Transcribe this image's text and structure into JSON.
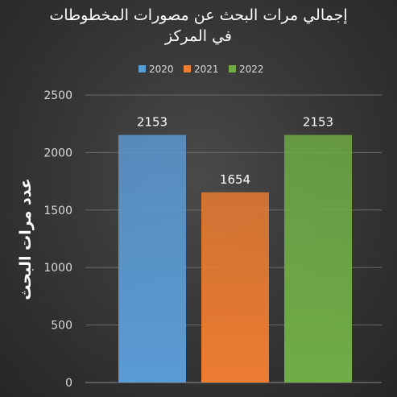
{
  "colors": {
    "background": "#383838",
    "text": "#ffffff",
    "tick_text": "#d9d9d9",
    "grid": "#6a6a6a"
  },
  "chart_data": {
    "type": "bar",
    "title": "إجمالي مرات البحث عن مصورات المخطوطات في المركز",
    "title_lines": [
      "إجمالي  مرات البحث عن مصورات المخطوطات",
      "في المركز"
    ],
    "xlabel": "",
    "ylabel": "عدد مرات البحث",
    "ylim": [
      0,
      2500
    ],
    "yticks": [
      0,
      500,
      1000,
      1500,
      2000,
      2500
    ],
    "grid": true,
    "legend_position": "top",
    "categories": [
      ""
    ],
    "series": [
      {
        "name": "2020",
        "values": [
          2153
        ],
        "color": "#5b9bd5",
        "label": "2153"
      },
      {
        "name": "2021",
        "values": [
          1654
        ],
        "color": "#ed7d31",
        "label": "1654"
      },
      {
        "name": "2022",
        "values": [
          2153
        ],
        "color": "#70ad47",
        "label": "2153"
      }
    ]
  }
}
